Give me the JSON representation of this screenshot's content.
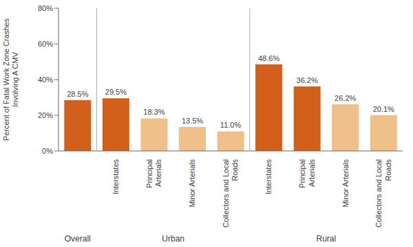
{
  "chart_data": {
    "type": "bar",
    "categories": [
      null,
      "Interstates",
      "Principal\nArterials",
      "Minor Arterials",
      "Collectors and Local\nRoads",
      "Interstates",
      "Principal\nArterials",
      "Minor Arterials",
      "Collectors and Local\nRoads"
    ],
    "values": [
      28.5,
      29.5,
      18.3,
      13.5,
      11.0,
      48.6,
      36.2,
      26.2,
      20.1
    ],
    "value_labels": [
      "28.5%",
      "29.5%",
      "18.3%",
      "13.5%",
      "11.0%",
      "48.6%",
      "36.2%",
      "26.2%",
      "20.1%"
    ],
    "data_labels": true,
    "colors": [
      "#D2601A",
      "#D2601A",
      "#F0C08A",
      "#F0C08A",
      "#F0C08A",
      "#D2601A",
      "#D2601A",
      "#F0C08A",
      "#F0C08A"
    ],
    "ylabel": "Percent of Fatal Work Zone Crashes\nInvolving A CMV",
    "ylim": [
      0,
      80
    ],
    "yticks": [
      {
        "value": 0,
        "label": "0%"
      },
      {
        "value": 20,
        "label": "20%"
      },
      {
        "value": 40,
        "label": "40%"
      },
      {
        "value": 60,
        "label": "60%"
      },
      {
        "value": 80,
        "label": "80%"
      }
    ],
    "grid": false,
    "annotations": [
      "Overall",
      "Urban",
      "Rural"
    ]
  }
}
